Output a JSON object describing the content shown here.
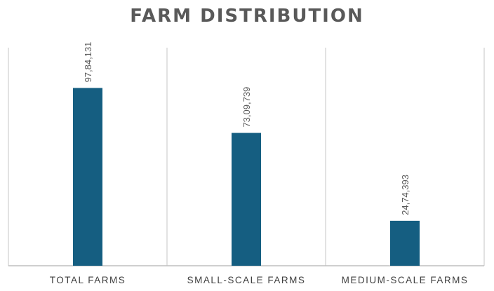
{
  "chart_data": {
    "type": "bar",
    "title": "FARM DISTRIBUTION",
    "categories": [
      "TOTAL FARMS",
      "SMALL-SCALE FARMS",
      "MEDIUM-SCALE FARMS"
    ],
    "values": [
      9784131,
      7309739,
      2474393
    ],
    "data_labels": [
      "97,84,131",
      "73,09,739",
      "24,74,393"
    ],
    "ylim": [
      0,
      12000000
    ],
    "grid": false,
    "legend": "none",
    "colors": {
      "bar": "#155e81",
      "divider": "#d9d9d9",
      "axis": "#bfbfbf",
      "title": "#595959"
    }
  }
}
